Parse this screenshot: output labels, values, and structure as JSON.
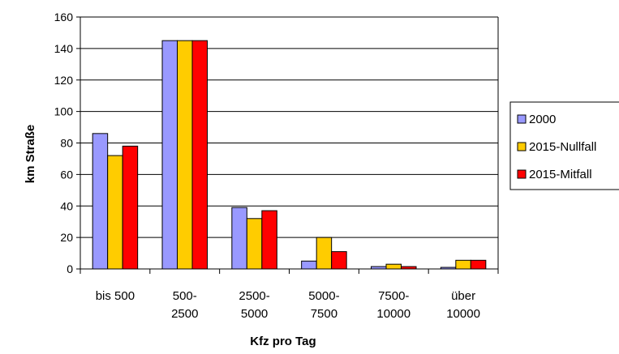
{
  "chart_data": {
    "type": "bar",
    "title": "",
    "xlabel": "Kfz pro Tag",
    "ylabel": "km Straße",
    "ylim": [
      0,
      160
    ],
    "yticks": [
      0,
      20,
      40,
      60,
      80,
      100,
      120,
      140,
      160
    ],
    "grid": true,
    "legend_position": "right",
    "categories": [
      [
        "bis 500"
      ],
      [
        "500-",
        "2500"
      ],
      [
        "2500-",
        "5000"
      ],
      [
        "5000-",
        "7500"
      ],
      [
        "7500-",
        "10000"
      ],
      [
        "über",
        "10000"
      ]
    ],
    "series": [
      {
        "name": "2000",
        "color": "#9999ff",
        "values": [
          86,
          145,
          39,
          5,
          1.5,
          1
        ]
      },
      {
        "name": "2015-Nullfall",
        "color": "#ffcc00",
        "values": [
          72,
          145,
          32,
          20,
          3,
          5.5
        ]
      },
      {
        "name": "2015-Mitfall",
        "color": "#ff0000",
        "values": [
          78,
          145,
          37,
          11,
          1.5,
          5.5
        ]
      }
    ]
  }
}
